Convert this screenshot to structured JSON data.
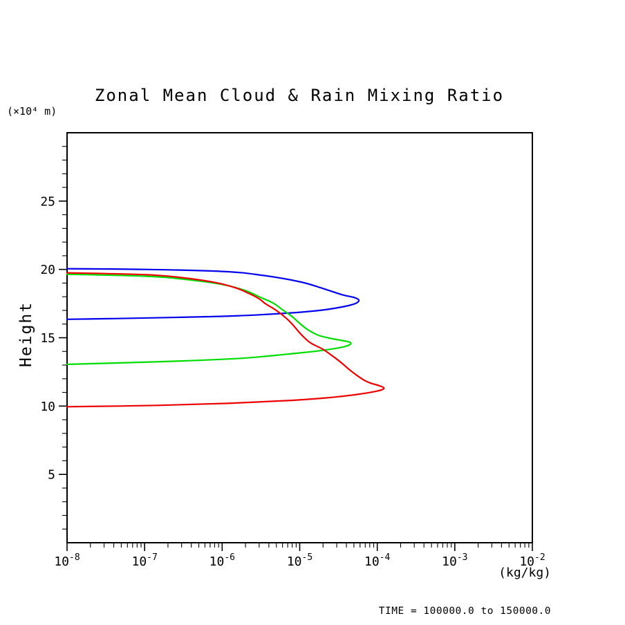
{
  "chart_data": {
    "type": "line",
    "title": "Zonal Mean Cloud & Rain Mixing Ratio",
    "xlabel": "(kg/kg)",
    "ylabel": "Height",
    "y_axis_unit": "(×10⁴ m)",
    "x_scale": "log",
    "xlim": [
      1e-08,
      0.01
    ],
    "ylim": [
      0,
      30
    ],
    "x_major_tick_exponents": [
      -8,
      -7,
      -6,
      -5,
      -4,
      -3,
      -2
    ],
    "x_minor_tick_multiples": [
      2,
      3,
      4,
      5,
      6,
      7,
      8,
      9
    ],
    "y_major_ticks": [
      5,
      10,
      15,
      20,
      25
    ],
    "y_minor_step": 1,
    "grid": false,
    "legend": "none",
    "frame_color": "#000000",
    "annotation": {
      "time_label": "TIME = 100000.0 to 150000.0"
    },
    "series": [
      {
        "name": "blue-curve",
        "color": "#0000ee",
        "points": [
          [
            1e-08,
            20.05
          ],
          [
            1e-07,
            20.0
          ],
          [
            1e-06,
            19.85
          ],
          [
            3e-06,
            19.6
          ],
          [
            1e-05,
            19.1
          ],
          [
            2e-05,
            18.6
          ],
          [
            3.5e-05,
            18.15
          ],
          [
            5e-05,
            17.95
          ],
          [
            5.8e-05,
            17.75
          ],
          [
            5.2e-05,
            17.5
          ],
          [
            3.5e-05,
            17.25
          ],
          [
            1.8e-05,
            17.0
          ],
          [
            7e-06,
            16.8
          ],
          [
            1.5e-06,
            16.6
          ],
          [
            3e-07,
            16.5
          ],
          [
            4e-08,
            16.4
          ],
          [
            1e-08,
            16.35
          ]
        ]
      },
      {
        "name": "green-curve",
        "color": "#00dd00",
        "points": [
          [
            1e-08,
            19.65
          ],
          [
            1e-07,
            19.5
          ],
          [
            3e-07,
            19.3
          ],
          [
            1e-06,
            18.9
          ],
          [
            2e-06,
            18.45
          ],
          [
            3e-06,
            18.0
          ],
          [
            4.5e-06,
            17.55
          ],
          [
            6e-06,
            17.05
          ],
          [
            8e-06,
            16.55
          ],
          [
            1e-05,
            16.05
          ],
          [
            1.3e-05,
            15.55
          ],
          [
            1.8e-05,
            15.15
          ],
          [
            2.8e-05,
            14.9
          ],
          [
            4.5e-05,
            14.65
          ],
          [
            3.8e-05,
            14.35
          ],
          [
            1.8e-05,
            14.05
          ],
          [
            7e-06,
            13.8
          ],
          [
            1.8e-06,
            13.5
          ],
          [
            3e-07,
            13.3
          ],
          [
            4e-08,
            13.15
          ],
          [
            1e-08,
            13.05
          ]
        ]
      },
      {
        "name": "red-curve",
        "color": "#ee0000",
        "points": [
          [
            1e-08,
            19.75
          ],
          [
            1e-07,
            19.62
          ],
          [
            3e-07,
            19.4
          ],
          [
            8e-07,
            19.05
          ],
          [
            1.5e-06,
            18.65
          ],
          [
            2.2e-06,
            18.25
          ],
          [
            3e-06,
            17.85
          ],
          [
            3.6e-06,
            17.5
          ],
          [
            5e-06,
            17.0
          ],
          [
            6.5e-06,
            16.5
          ],
          [
            8e-06,
            16.0
          ],
          [
            9.5e-06,
            15.5
          ],
          [
            1.15e-05,
            15.0
          ],
          [
            1.4e-05,
            14.6
          ],
          [
            2e-05,
            14.15
          ],
          [
            2.6e-05,
            13.7
          ],
          [
            3.4e-05,
            13.2
          ],
          [
            4.3e-05,
            12.7
          ],
          [
            5.6e-05,
            12.2
          ],
          [
            7e-05,
            11.85
          ],
          [
            8.5e-05,
            11.65
          ],
          [
            0.000105,
            11.5
          ],
          [
            0.000122,
            11.3
          ],
          [
            0.0001,
            11.1
          ],
          [
            5.5e-05,
            10.85
          ],
          [
            2.2e-05,
            10.6
          ],
          [
            7e-06,
            10.4
          ],
          [
            1.2e-06,
            10.2
          ],
          [
            1.5e-07,
            10.05
          ],
          [
            1e-08,
            9.95
          ]
        ]
      }
    ]
  }
}
